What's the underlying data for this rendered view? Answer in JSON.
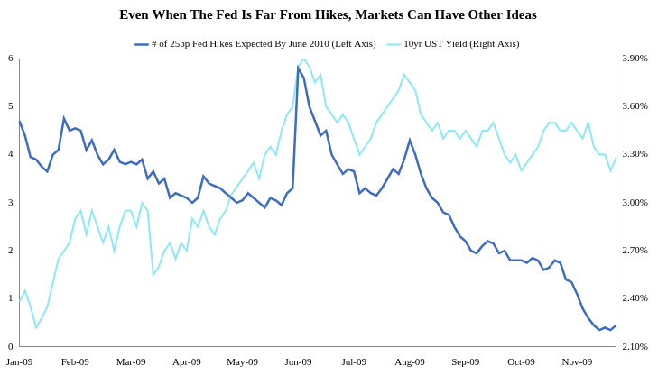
{
  "chart_data": {
    "type": "line",
    "title": "Even When The Fed Is Far From Hikes, Markets Can Have Other Ideas",
    "categories": [
      "Jan-09",
      null,
      null,
      null,
      null,
      null,
      null,
      null,
      null,
      null,
      "Feb-09",
      null,
      null,
      null,
      null,
      null,
      null,
      null,
      null,
      null,
      "Mar-09",
      null,
      null,
      null,
      null,
      null,
      null,
      null,
      null,
      null,
      "Apr-09",
      null,
      null,
      null,
      null,
      null,
      null,
      null,
      null,
      null,
      "May-09",
      null,
      null,
      null,
      null,
      null,
      null,
      null,
      null,
      null,
      "Jun-09",
      null,
      null,
      null,
      null,
      null,
      null,
      null,
      null,
      null,
      "Jul-09",
      null,
      null,
      null,
      null,
      null,
      null,
      null,
      null,
      null,
      "Aug-09",
      null,
      null,
      null,
      null,
      null,
      null,
      null,
      null,
      null,
      "Sep-09",
      null,
      null,
      null,
      null,
      null,
      null,
      null,
      null,
      null,
      "Oct-09",
      null,
      null,
      null,
      null,
      null,
      null,
      null,
      null,
      null,
      "Nov-09",
      null,
      null,
      null,
      null,
      null,
      null,
      null
    ],
    "series": [
      {
        "name": "# of 25bp Fed Hikes Expected By June 2010 (Left Axis)",
        "color": "#3D6CC0",
        "axis": "y",
        "values": [
          4.7,
          4.4,
          3.95,
          3.9,
          3.75,
          3.65,
          4.0,
          4.1,
          4.75,
          4.5,
          4.55,
          4.5,
          4.1,
          4.3,
          4.0,
          3.8,
          3.9,
          4.1,
          3.85,
          3.8,
          3.85,
          3.8,
          3.9,
          3.5,
          3.65,
          3.4,
          3.5,
          3.1,
          3.2,
          3.15,
          3.1,
          3.0,
          3.1,
          3.55,
          3.4,
          3.35,
          3.3,
          3.2,
          3.1,
          3.0,
          3.05,
          3.2,
          3.1,
          3.0,
          2.9,
          3.1,
          3.05,
          2.95,
          3.2,
          3.3,
          5.8,
          5.6,
          5.0,
          4.7,
          4.4,
          4.5,
          4.0,
          3.8,
          3.6,
          3.7,
          3.65,
          3.2,
          3.3,
          3.2,
          3.15,
          3.3,
          3.5,
          3.7,
          3.6,
          3.9,
          4.3,
          4.0,
          3.6,
          3.3,
          3.1,
          3.0,
          2.8,
          2.75,
          2.5,
          2.3,
          2.2,
          2.0,
          1.95,
          2.1,
          2.2,
          2.15,
          1.95,
          2.0,
          1.8,
          1.8,
          1.8,
          1.75,
          1.85,
          1.8,
          1.6,
          1.65,
          1.8,
          1.75,
          1.4,
          1.35,
          1.1,
          0.8,
          0.6,
          0.45,
          0.35,
          0.4,
          0.35,
          0.45
        ]
      },
      {
        "name": "10yr UST Yield (Right Axis)",
        "color": "#8DE8F4",
        "axis": "y2",
        "values": [
          2.38,
          2.45,
          2.35,
          2.22,
          2.28,
          2.35,
          2.5,
          2.65,
          2.7,
          2.75,
          2.9,
          2.95,
          2.8,
          2.95,
          2.85,
          2.75,
          2.85,
          2.7,
          2.85,
          2.95,
          2.95,
          2.85,
          3.0,
          2.95,
          2.55,
          2.6,
          2.7,
          2.75,
          2.65,
          2.75,
          2.7,
          2.9,
          2.85,
          2.95,
          2.85,
          2.8,
          2.9,
          2.95,
          3.05,
          3.1,
          3.15,
          3.2,
          3.25,
          3.15,
          3.3,
          3.35,
          3.3,
          3.45,
          3.55,
          3.6,
          3.85,
          3.9,
          3.85,
          3.75,
          3.8,
          3.6,
          3.55,
          3.5,
          3.55,
          3.5,
          3.4,
          3.3,
          3.35,
          3.4,
          3.5,
          3.55,
          3.6,
          3.65,
          3.7,
          3.8,
          3.75,
          3.7,
          3.55,
          3.5,
          3.45,
          3.5,
          3.4,
          3.45,
          3.45,
          3.4,
          3.45,
          3.4,
          3.35,
          3.45,
          3.45,
          3.5,
          3.4,
          3.3,
          3.25,
          3.3,
          3.2,
          3.25,
          3.3,
          3.35,
          3.45,
          3.5,
          3.5,
          3.45,
          3.45,
          3.5,
          3.45,
          3.4,
          3.5,
          3.35,
          3.3,
          3.3,
          3.2,
          3.28
        ]
      }
    ],
    "ylim": [
      0,
      6
    ],
    "yticks": [
      0,
      1,
      2,
      3,
      4,
      5,
      6
    ],
    "y2lim": [
      2.1,
      3.9
    ],
    "y2ticks": [
      {
        "value": 2.1,
        "label": "2.10%"
      },
      {
        "value": 2.4,
        "label": "2.40%"
      },
      {
        "value": 2.7,
        "label": "2.70%"
      },
      {
        "value": 3.0,
        "label": "3.00%"
      },
      {
        "value": 3.3,
        "label": "3.30%"
      },
      {
        "value": 3.6,
        "label": "3.60%"
      },
      {
        "value": 3.9,
        "label": "3.90%"
      }
    ],
    "grid": false,
    "legend": "top"
  }
}
